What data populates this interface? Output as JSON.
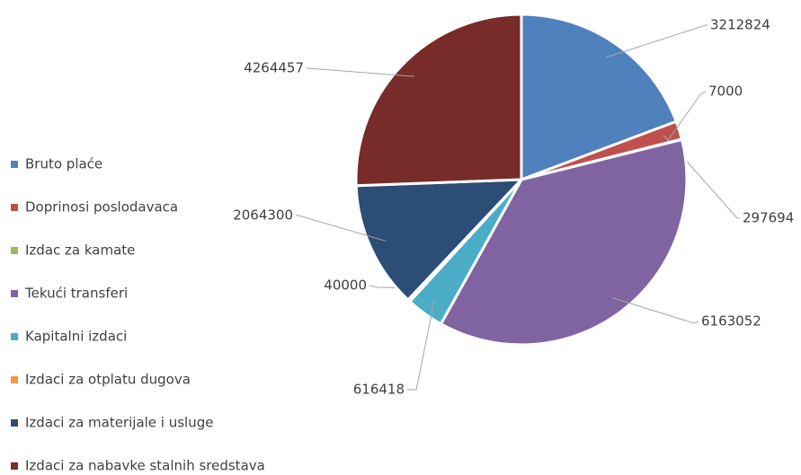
{
  "chart_data": {
    "type": "pie",
    "categories": [
      "Bruto plaće",
      "Doprinosi poslodavaca",
      "Izdac za kamate",
      "Tekući transferi",
      "Kapitalni izdaci",
      "Izdaci za otplatu dugova",
      "Izdaci za materijale i usluge",
      "Izdaci za nabavke stalnih sredstava"
    ],
    "values": [
      3212824,
      297694,
      7000,
      6163052,
      616418,
      40000,
      2064300,
      4264457
    ],
    "colors": [
      "#4f81bd",
      "#c0504d",
      "#9bbb59",
      "#8064a2",
      "#4bacc6",
      "#f79646",
      "#2c4d75",
      "#772c2a"
    ],
    "legend": "left"
  }
}
